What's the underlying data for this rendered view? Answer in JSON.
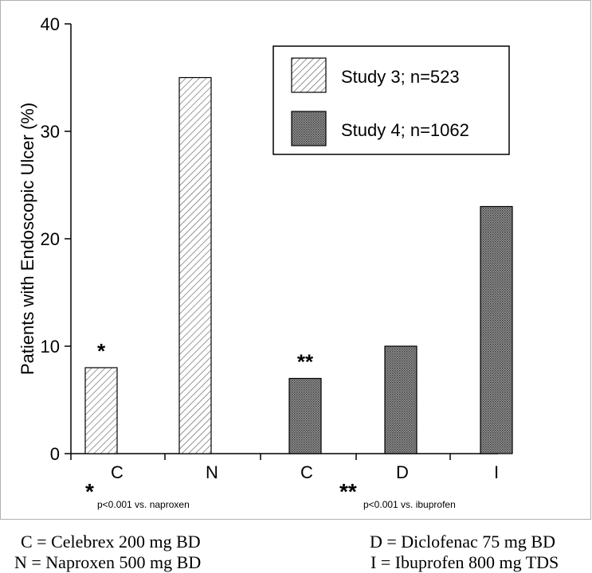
{
  "chart_data": {
    "type": "bar",
    "ylabel": "Patients with Endoscopic Ulcer (%)",
    "ylim": [
      0,
      40
    ],
    "yticks": [
      0,
      10,
      20,
      30,
      40
    ],
    "categories": [
      "C",
      "N",
      "C",
      "D",
      "I"
    ],
    "bars": [
      {
        "category": "C",
        "value": 8,
        "series": "Study 3; n=523",
        "annotation": "*"
      },
      {
        "category": "N",
        "value": 35,
        "series": "Study 3; n=523",
        "annotation": ""
      },
      {
        "category": "C",
        "value": 7,
        "series": "Study 4; n=1062",
        "annotation": "**"
      },
      {
        "category": "D",
        "value": 10,
        "series": "Study 4; n=1062",
        "annotation": ""
      },
      {
        "category": "I",
        "value": 23,
        "series": "Study 4; n=1062",
        "annotation": ""
      }
    ],
    "series": [
      {
        "name": "Study 3; n=523",
        "pattern": "diagonal-hatch",
        "values": [
          8,
          35,
          null,
          null,
          null
        ]
      },
      {
        "name": "Study 4; n=1062",
        "pattern": "dark-dotted",
        "values": [
          null,
          null,
          7,
          10,
          23
        ]
      }
    ],
    "legend_position": "top-right",
    "significance_notes": [
      {
        "marker": "*",
        "text": "p<0.001 vs. naproxen"
      },
      {
        "marker": "**",
        "text": "p<0.001 vs. ibuprofen"
      }
    ],
    "grid": false
  },
  "footnotes": {
    "c": "C = Celebrex 200 mg BD",
    "d": "D = Diclofenac 75 mg BD",
    "n": "N = Naproxen 500 mg BD",
    "i": "I = Ibuprofen 800 mg TDS"
  },
  "colors": {
    "axis": "#000000",
    "hatch_line": "#555555",
    "dark_fill_base": "#9a9a9a",
    "dark_fill_dot": "#3a3a3a",
    "frame": "#b0b0b0"
  }
}
